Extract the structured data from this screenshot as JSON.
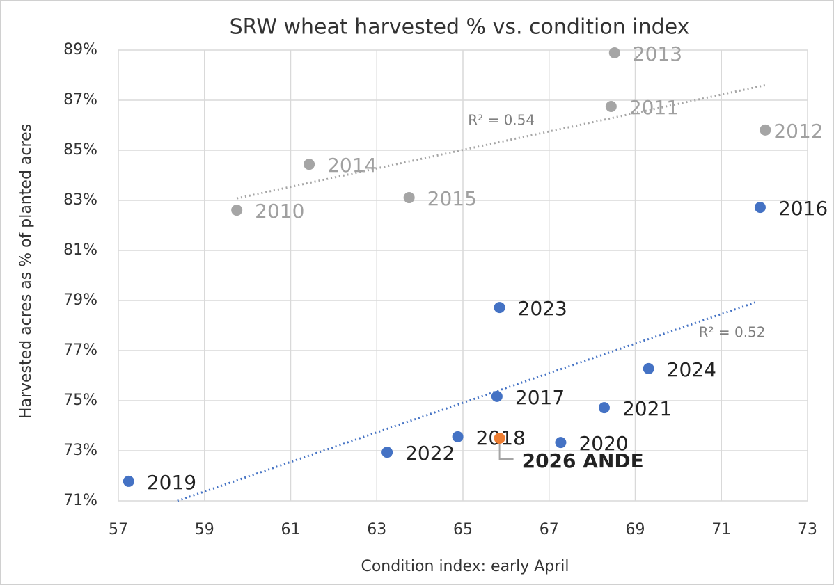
{
  "chart_data": {
    "type": "scatter",
    "title": "SRW wheat harvested % vs. condition index",
    "x_label": "Condition index: early April",
    "y_label": "Harvested acres as % of planted acres",
    "xlim": [
      57,
      73
    ],
    "xticks": [
      57,
      59,
      61,
      63,
      65,
      67,
      69,
      71,
      73
    ],
    "ylim": [
      71,
      89
    ],
    "yticks": [
      {
        "value": 71,
        "label": "71%"
      },
      {
        "value": 73,
        "label": "73%"
      },
      {
        "value": 75,
        "label": "75%"
      },
      {
        "value": 77,
        "label": "77%"
      },
      {
        "value": 79,
        "label": "79%"
      },
      {
        "value": 81,
        "label": "81%"
      },
      {
        "value": 83,
        "label": "83%"
      },
      {
        "value": 85,
        "label": "85%"
      },
      {
        "value": 87,
        "label": "87%"
      },
      {
        "value": 89,
        "label": "89%"
      }
    ],
    "grid": true,
    "series": [
      {
        "color": "#a5a5a5",
        "label_color": "#a0a0a0",
        "labels": [
          "2010",
          "2014",
          "2015",
          "2013",
          "2011",
          "2012"
        ],
        "x": [
          59.75,
          61.43,
          63.75,
          68.52,
          68.44,
          72.02
        ],
        "values": [
          82.61,
          84.44,
          83.11,
          88.89,
          86.75,
          85.81
        ],
        "trendline": {
          "x": [
            59.75,
            72.05
          ],
          "y": [
            83.08,
            87.61
          ],
          "label": "R² = 0.54"
        }
      },
      {
        "color": "#4472c4",
        "label_color": "#222222",
        "labels": [
          "2016",
          "2023",
          "2024",
          "2017",
          "2021",
          "2018",
          "2020",
          "2022",
          "2019"
        ],
        "x": [
          71.9,
          65.85,
          69.31,
          65.79,
          68.28,
          64.88,
          67.27,
          63.24,
          57.24
        ],
        "values": [
          82.72,
          78.72,
          76.28,
          75.17,
          74.72,
          73.56,
          73.33,
          72.94,
          71.78
        ],
        "trendline": {
          "x": [
            58.37,
            71.78
          ],
          "y": [
            71,
            78.92
          ],
          "label": "R² = 0.52"
        }
      },
      {
        "color": "#ed7d31",
        "label_color": "#222222",
        "bold": true,
        "labels": [
          "2026 ANDE"
        ],
        "x": [
          65.85
        ],
        "values": [
          73.5
        ]
      }
    ]
  }
}
